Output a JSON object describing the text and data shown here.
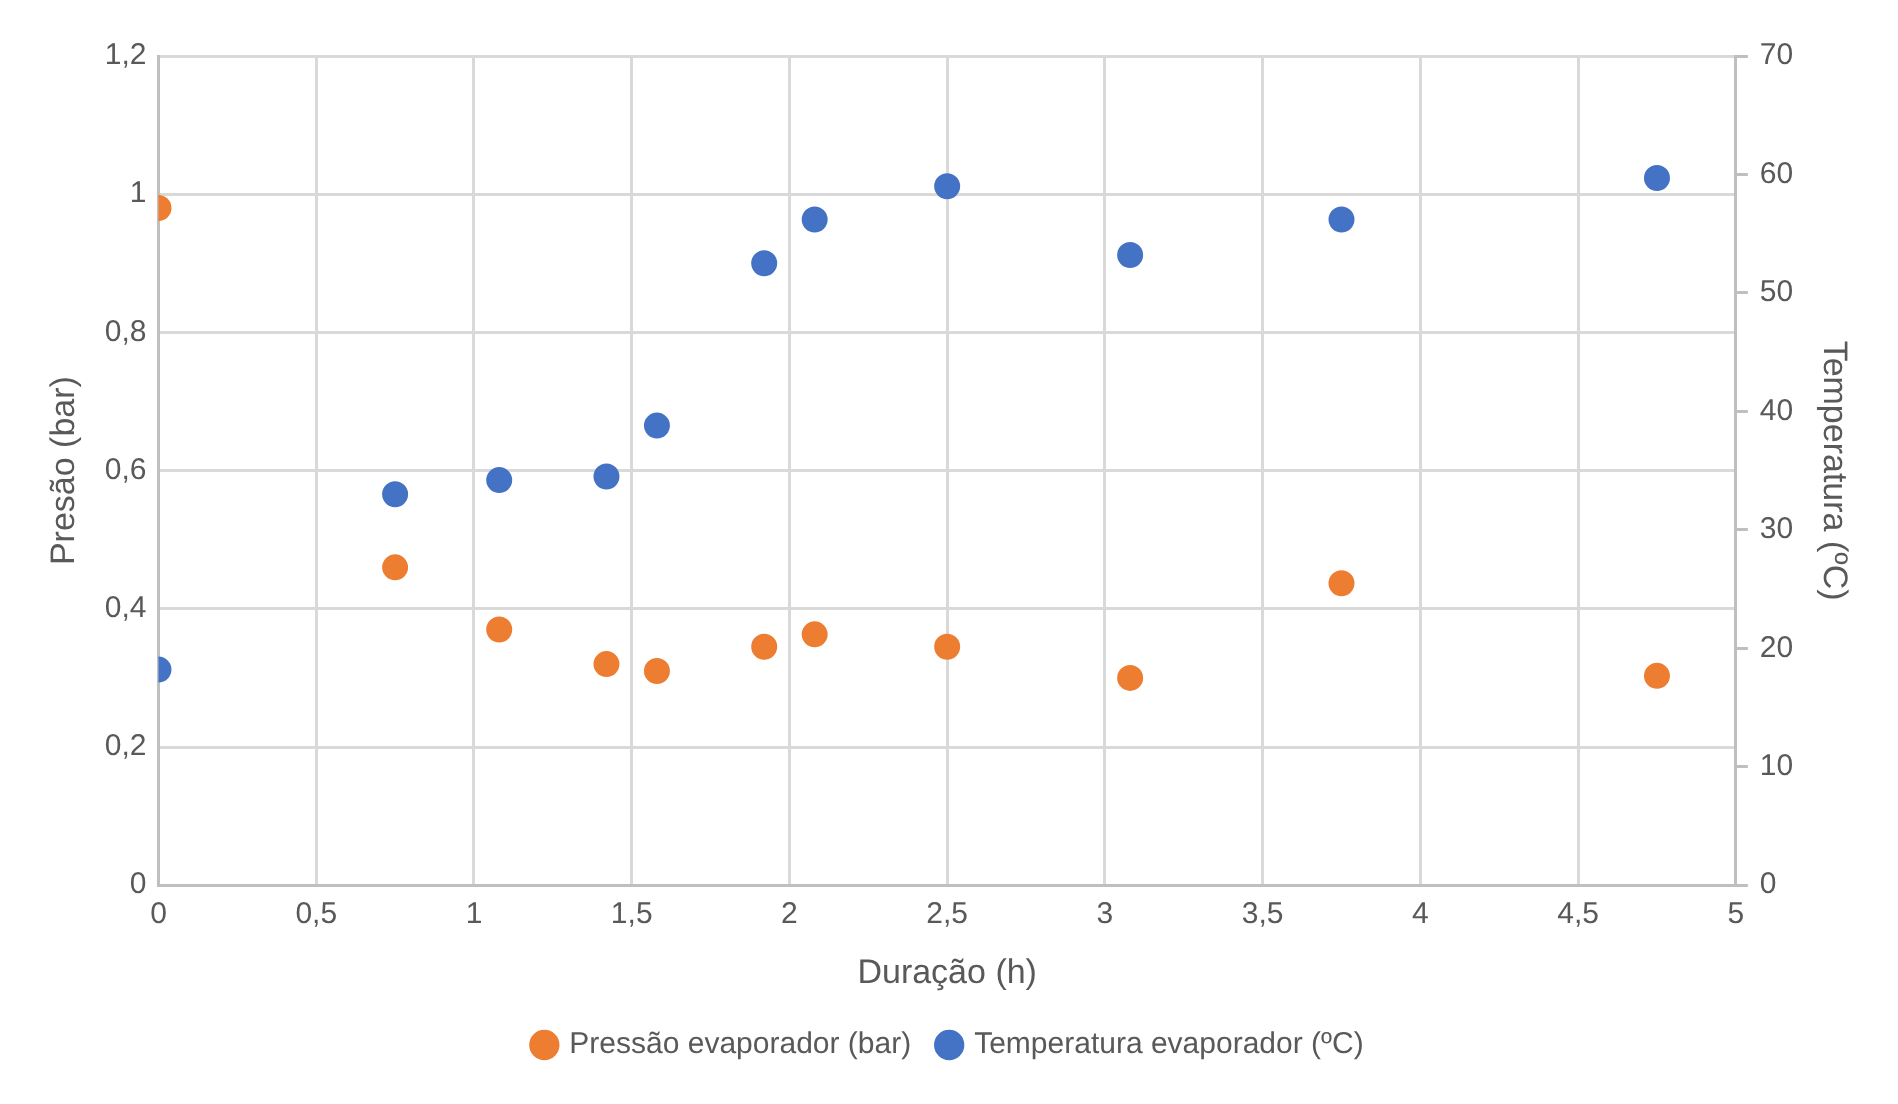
{
  "chart_data": {
    "type": "scatter",
    "xlabel": "Duração (h)",
    "ylabel": "Presão (bar)",
    "y2label": "Temperatura (ºC)",
    "x": [
      0,
      0.75,
      1.08,
      1.42,
      1.58,
      1.92,
      2.08,
      2.5,
      3.08,
      3.75,
      4.75
    ],
    "series": [
      {
        "name": "Pressão evaporador (bar)",
        "color": "#ed7d31",
        "values": [
          0.98,
          0.46,
          0.37,
          0.32,
          0.31,
          0.345,
          0.363,
          0.345,
          0.3,
          0.437,
          0.303
        ]
      },
      {
        "name": "Temperatura evaporador (ºC)",
        "color": "#4472c4",
        "axis": "y2",
        "values": [
          18.2,
          33.0,
          34.2,
          34.5,
          38.8,
          52.5,
          56.2,
          59.0,
          53.2,
          56.2,
          59.7
        ]
      }
    ],
    "xlim": [
      0,
      5
    ],
    "xticks": [
      0,
      {
        "value": 0.5,
        "label": "0,5"
      },
      1,
      {
        "value": 1.5,
        "label": "1,5"
      },
      2,
      {
        "value": 2.5,
        "label": "2,5"
      },
      3,
      {
        "value": 3.5,
        "label": "3,5"
      },
      4,
      {
        "value": 4.5,
        "label": "4,5"
      },
      5
    ],
    "ylim": [
      0,
      1.2
    ],
    "yticks": [
      0,
      {
        "value": 0.2,
        "label": "0,2"
      },
      {
        "value": 0.4,
        "label": "0,4"
      },
      {
        "value": 0.6,
        "label": "0,6"
      },
      {
        "value": 0.8,
        "label": "0,8"
      },
      1,
      {
        "value": 1.2,
        "label": "1,2"
      }
    ],
    "y2lim": [
      0,
      70
    ],
    "y2ticks": [
      0,
      10,
      20,
      30,
      40,
      50,
      60,
      70
    ],
    "grid": true,
    "legend": "bottom",
    "marker": "circle"
  }
}
